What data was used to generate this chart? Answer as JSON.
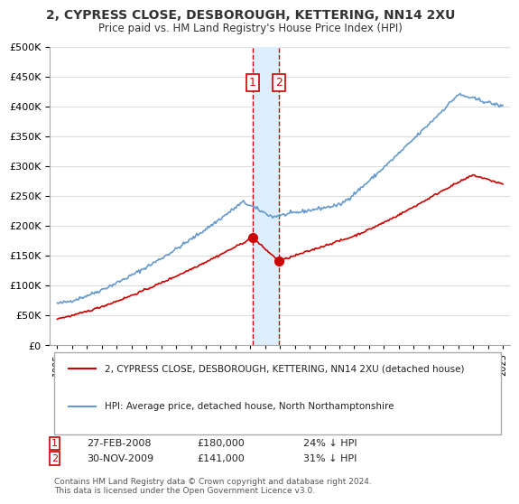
{
  "title": "2, CYPRESS CLOSE, DESBOROUGH, KETTERING, NN14 2XU",
  "subtitle": "Price paid vs. HM Land Registry's House Price Index (HPI)",
  "legend_line1": "2, CYPRESS CLOSE, DESBOROUGH, KETTERING, NN14 2XU (detached house)",
  "legend_line2": "HPI: Average price, detached house, North Northamptonshire",
  "footnote": "Contains HM Land Registry data © Crown copyright and database right 2024.\nThis data is licensed under the Open Government Licence v3.0.",
  "sale1_date_num": 2008.15,
  "sale1_label": "27-FEB-2008",
  "sale1_price": 180000,
  "sale1_pct": "24% ↓ HPI",
  "sale2_date_num": 2009.92,
  "sale2_label": "30-NOV-2009",
  "sale2_price": 141000,
  "sale2_pct": "31% ↓ HPI",
  "red_color": "#cc0000",
  "blue_color": "#6699cc",
  "shade_color": "#ddeeff",
  "background_color": "#ffffff",
  "grid_color": "#dddddd",
  "ylim_min": 0,
  "ylim_max": 500000,
  "xlim_min": 1994.5,
  "xlim_max": 2025.5
}
